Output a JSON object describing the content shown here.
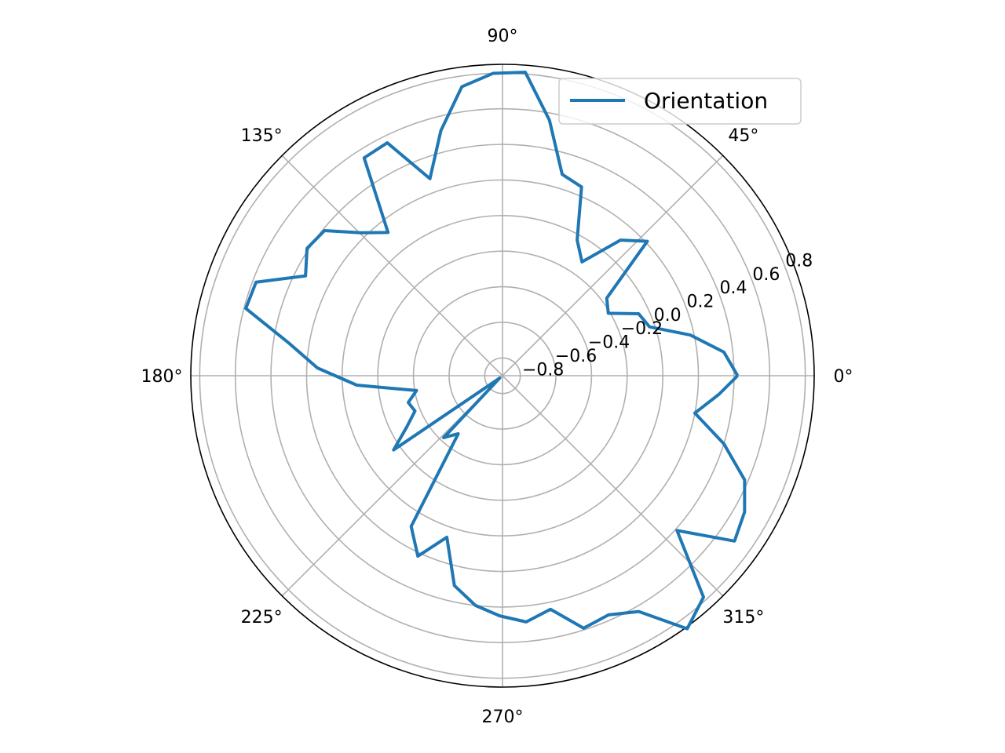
{
  "chart_data": {
    "type": "line",
    "projection": "polar",
    "title": "",
    "theta_unit": "degrees",
    "theta_tick_labels": [
      "0°",
      "45°",
      "90°",
      "135°",
      "180°",
      "225°",
      "270°",
      "315°"
    ],
    "theta_tick_values": [
      0,
      45,
      90,
      135,
      180,
      225,
      270,
      315
    ],
    "r_tick_labels": [
      "−0.8",
      "−0.6",
      "−0.4",
      "−0.2",
      "0.0",
      "0.2",
      "0.4",
      "0.6",
      "0.8"
    ],
    "r_tick_values": [
      -0.8,
      -0.6,
      -0.4,
      -0.2,
      0.0,
      0.2,
      0.4,
      0.6,
      0.8
    ],
    "rlim": [
      -0.9,
      0.85
    ],
    "rlabel_position_deg": 22.5,
    "grid": true,
    "legend": {
      "placement": "top-right",
      "entries": [
        "Orientation"
      ]
    },
    "series": [
      {
        "name": "Orientation",
        "color": "#1f77b4",
        "theta": [
          0,
          6.1,
          12.2,
          18.4,
          24.5,
          30.6,
          36.7,
          42.9,
          49.0,
          55.1,
          61.2,
          67.3,
          73.5,
          79.6,
          85.7,
          91.8,
          98.0,
          104.1,
          110.2,
          116.3,
          122.4,
          128.6,
          134.7,
          140.8,
          146.9,
          153.1,
          159.2,
          165.3,
          171.4,
          177.6,
          183.7,
          189.8,
          195.9,
          202.0,
          208.2,
          214.3,
          220.4,
          226.5,
          232.7,
          238.8,
          244.9,
          251.0,
          257.1,
          263.3,
          269.4,
          275.5,
          281.6,
          287.8,
          293.9,
          300.0,
          306.1,
          312.2,
          318.4,
          324.5,
          330.6,
          336.7,
          342.9,
          349.0,
          355.1,
          360
        ],
        "r": [
          0.42,
          0.35,
          0.18,
          -0.03,
          -0.06,
          -0.21,
          -0.17,
          0.21,
          0.11,
          -0.12,
          -0.03,
          0.25,
          0.28,
          0.56,
          0.81,
          0.8,
          0.74,
          0.52,
          0.28,
          0.56,
          0.55,
          0.13,
          0.23,
          0.39,
          0.41,
          0.34,
          0.58,
          0.59,
          0.31,
          0.14,
          -0.08,
          -0.41,
          -0.35,
          -0.37,
          -0.29,
          -0.16,
          -0.88,
          -0.42,
          -0.49,
          0.09,
          0.22,
          0.06,
          0.31,
          0.4,
          0.45,
          0.49,
          0.44,
          0.59,
          0.57,
          0.63,
          0.86,
          0.78,
          0.41,
          0.7,
          0.66,
          0.58,
          0.4,
          0.2,
          0.32,
          0.42
        ]
      }
    ]
  }
}
